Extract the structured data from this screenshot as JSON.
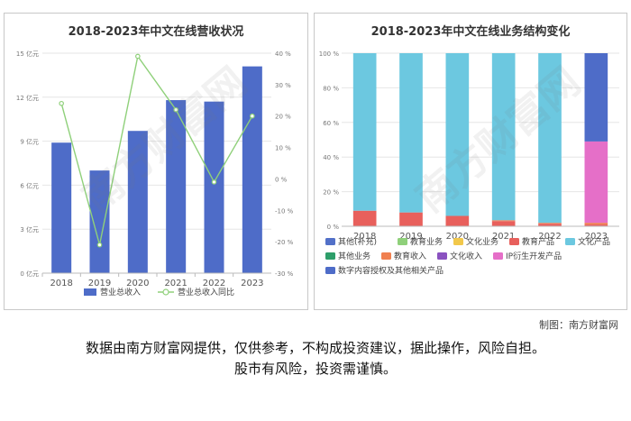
{
  "chart_data": [
    {
      "type": "bar",
      "title": "2018-2023年中文在线营收状况",
      "categories": [
        "2018",
        "2019",
        "2020",
        "2021",
        "2022",
        "2023"
      ],
      "series": [
        {
          "name": "营业总收入",
          "type": "bar",
          "axis": "left",
          "values": [
            8.9,
            7.0,
            9.7,
            11.8,
            11.7,
            14.1
          ],
          "color": "#4e6cc8"
        },
        {
          "name": "营业总收入同比",
          "type": "line",
          "axis": "right",
          "values": [
            24,
            -21,
            39,
            22,
            -1,
            20
          ],
          "color": "#8fd07a"
        }
      ],
      "y_left": {
        "min": 0,
        "max": 15,
        "ticks": [
          "0 亿元",
          "3 亿元",
          "6 亿元",
          "9 亿元",
          "12 亿元",
          "15 亿元"
        ]
      },
      "y_right": {
        "min": -30,
        "max": 40,
        "ticks": [
          "-30 %",
          "-20 %",
          "-10 %",
          "0 %",
          "10 %",
          "20 %",
          "30 %",
          "40 %"
        ]
      },
      "grid": true,
      "legend": "bottom"
    },
    {
      "type": "bar",
      "stacked": true,
      "title": "2018-2023年中文在线业务结构变化",
      "categories": [
        "2018",
        "2019",
        "2020",
        "2021",
        "2022",
        "2023"
      ],
      "y_axis": {
        "min": 0,
        "max": 100,
        "ticks": [
          "0 %",
          "20 %",
          "40 %",
          "60 %",
          "80 %",
          "100 %"
        ]
      },
      "series": [
        {
          "name": "教育产品",
          "color": "#e8605c",
          "values": [
            9,
            8,
            6,
            3,
            1.5,
            1
          ]
        },
        {
          "name": "教育收入",
          "color": "#f08050",
          "values": [
            0,
            0,
            0,
            0.5,
            0.5,
            1
          ]
        },
        {
          "name": "IP衍生开发产品",
          "color": "#e56fc8",
          "values": [
            0,
            0,
            0,
            0,
            0,
            47
          ]
        },
        {
          "name": "文化产品",
          "color": "#6cc8e0",
          "values": [
            91,
            92,
            94,
            96.5,
            98,
            0
          ]
        },
        {
          "name": "数字内容授权及其他相关产品",
          "color": "#4e6cc8",
          "values": [
            0,
            0,
            0,
            0,
            0,
            51
          ]
        },
        {
          "name": "其他(补充)",
          "color": "#5270c8",
          "values": [
            0,
            0,
            0,
            0,
            0,
            0
          ]
        },
        {
          "name": "教育业务",
          "color": "#8fd07a",
          "values": [
            0,
            0,
            0,
            0,
            0,
            0
          ]
        },
        {
          "name": "文化业务",
          "color": "#f2c84b",
          "values": [
            0,
            0,
            0,
            0,
            0,
            0
          ]
        },
        {
          "name": "其他业务",
          "color": "#2e9e6a",
          "values": [
            0,
            0,
            0,
            0,
            0,
            0
          ]
        },
        {
          "name": "文化收入",
          "color": "#8a52c0",
          "values": [
            0,
            0,
            0,
            0,
            0,
            0
          ]
        }
      ],
      "legend_order": [
        "其他(补充)",
        "教育业务",
        "文化业务",
        "教育产品",
        "文化产品",
        "其他业务",
        "教育收入",
        "文化收入",
        "IP衍生开发产品",
        "数字内容授权及其他相关产品"
      ],
      "grid": true,
      "legend": "bottom"
    }
  ],
  "credit": "制图：南方财富网",
  "disclaimer_line1": "数据由南方财富网提供，仅供参考，不构成投资建议，据此操作，风险自担。",
  "disclaimer_line2": "股市有风险，投资需谨慎。",
  "watermark_text": "南方财富网"
}
